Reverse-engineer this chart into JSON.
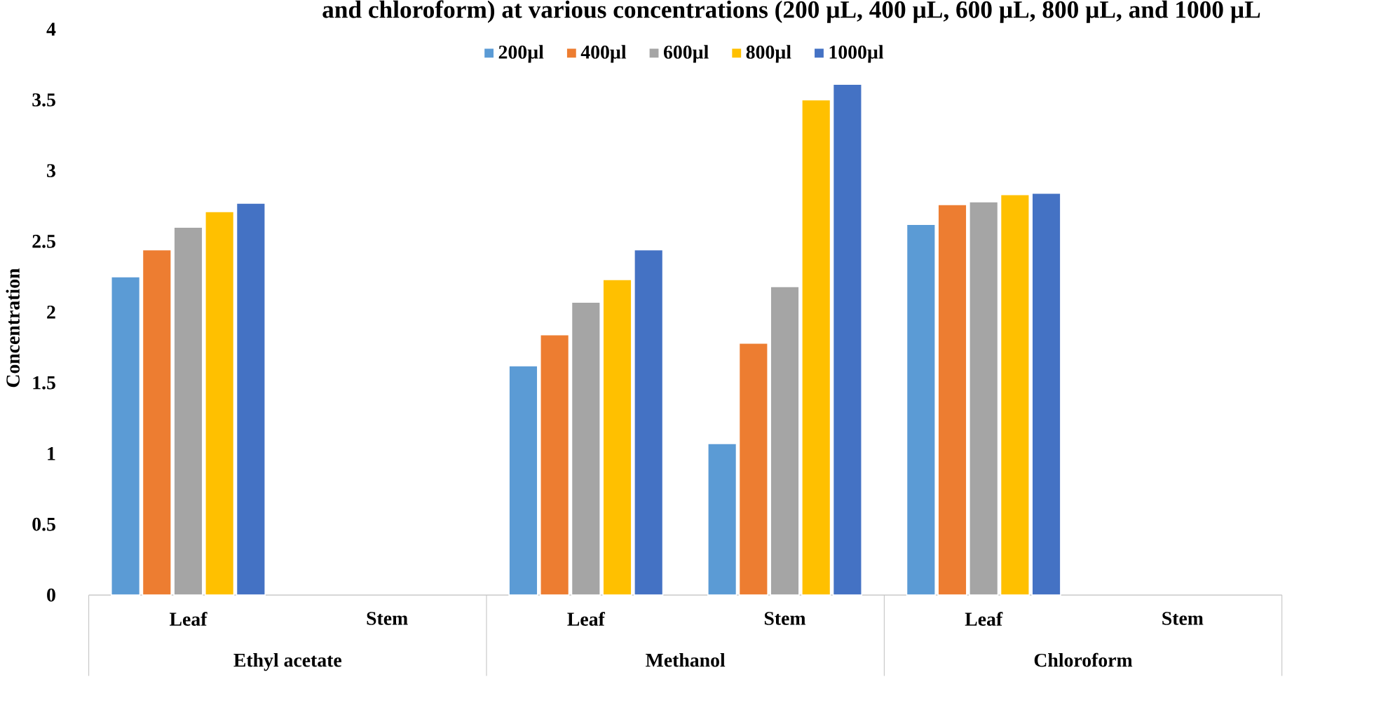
{
  "chart_data": {
    "type": "bar",
    "title": "and chloroform) at various concentrations (200 µL, 400 µL, 600 µL, 800 µL, and 1000 µL",
    "ylabel": "Concentration",
    "categories": [
      "Leaf",
      "Stem",
      "Leaf",
      "Stem",
      "Leaf",
      "Stem"
    ],
    "annotations": [
      "Ethyl acetate",
      "Methanol",
      "Chloroform"
    ],
    "series": [
      {
        "name": "200µl",
        "color": "#5b9bd5",
        "values": [
          2.25,
          null,
          1.62,
          1.07,
          2.62,
          null
        ]
      },
      {
        "name": "400µl",
        "color": "#ed7d31",
        "values": [
          2.44,
          null,
          1.84,
          1.78,
          2.76,
          null
        ]
      },
      {
        "name": "600µl",
        "color": "#a5a5a5",
        "values": [
          2.6,
          null,
          2.07,
          2.18,
          2.78,
          null
        ]
      },
      {
        "name": "800µl",
        "color": "#ffc000",
        "values": [
          2.71,
          null,
          2.23,
          3.5,
          2.83,
          null
        ]
      },
      {
        "name": "1000µl",
        "color": "#4472c4",
        "values": [
          2.77,
          null,
          2.44,
          3.61,
          2.84,
          null
        ]
      }
    ],
    "ylim": [
      0,
      4
    ],
    "yticks": [
      0,
      0.5,
      1,
      1.5,
      2,
      2.5,
      3,
      3.5,
      4
    ],
    "grid": false,
    "legend": "top"
  }
}
